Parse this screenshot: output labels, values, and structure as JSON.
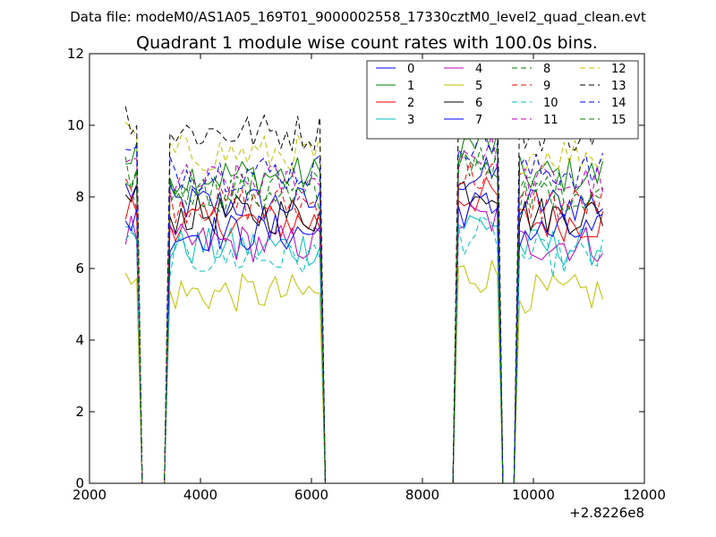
{
  "chart_data": {
    "type": "line",
    "suptitle": "Data file: modeM0/AS1A05_169T01_9000002558_17330cztM0_level2_quad_clean.evt",
    "title": "Quadrant 1 module wise count rates with 100.0s bins.",
    "xlabel": "",
    "ylabel": "",
    "xlim": [
      2000,
      12000
    ],
    "ylim": [
      0,
      12
    ],
    "x_ticks": [
      2000,
      4000,
      6000,
      8000,
      10000,
      12000
    ],
    "x_tick_labels": [
      "2000",
      "4000",
      "6000",
      "8000",
      "10000",
      "12000"
    ],
    "y_ticks": [
      0,
      2,
      4,
      6,
      8,
      10,
      12
    ],
    "y_tick_labels": [
      "0",
      "2",
      "4",
      "6",
      "8",
      "10",
      "12"
    ],
    "x_offset_label": "+2.8226e8",
    "grid": false,
    "legend_position": "top-right",
    "legend_columns": 4,
    "series": [
      {
        "name": "0",
        "color": "#0000ff",
        "dash": "solid",
        "level": 7.8
      },
      {
        "name": "1",
        "color": "#008000",
        "dash": "solid",
        "level": 8.6
      },
      {
        "name": "2",
        "color": "#ff0000",
        "dash": "solid",
        "level": 7.3
      },
      {
        "name": "3",
        "color": "#00bfbf",
        "dash": "solid",
        "level": 6.6
      },
      {
        "name": "4",
        "color": "#bf00bf",
        "dash": "solid",
        "level": 6.7
      },
      {
        "name": "5",
        "color": "#bfbf00",
        "dash": "solid",
        "level": 5.3
      },
      {
        "name": "6",
        "color": "#000000",
        "dash": "solid",
        "level": 7.5
      },
      {
        "name": "7",
        "color": "#0000ff",
        "dash": "solid",
        "level": 7.0
      },
      {
        "name": "8",
        "color": "#008000",
        "dash": "dashed",
        "level": 8.2
      },
      {
        "name": "9",
        "color": "#ff0000",
        "dash": "dashed",
        "level": 7.8
      },
      {
        "name": "10",
        "color": "#00bfbf",
        "dash": "dashed",
        "level": 6.3
      },
      {
        "name": "11",
        "color": "#bf00bf",
        "dash": "dashed",
        "level": 8.4
      },
      {
        "name": "12",
        "color": "#bfbf00",
        "dash": "dashed",
        "level": 9.2
      },
      {
        "name": "13",
        "color": "#000000",
        "dash": "dashed",
        "level": 9.8
      },
      {
        "name": "14",
        "color": "#0000ff",
        "dash": "dashed",
        "level": 8.7
      },
      {
        "name": "15",
        "color": "#008000",
        "dash": "dashed",
        "level": 8.1
      }
    ],
    "segments": [
      {
        "x_start": 2650,
        "x_end": 2900,
        "scale": 1.05
      },
      {
        "x_start": 3400,
        "x_end": 6200,
        "scale": 1.0
      },
      {
        "x_start": 8600,
        "x_end": 9400,
        "scale": 1.1
      },
      {
        "x_start": 9700,
        "x_end": 11300,
        "scale": 1.0
      }
    ],
    "x_step": 100,
    "x_range": [
      2650,
      11300
    ]
  }
}
